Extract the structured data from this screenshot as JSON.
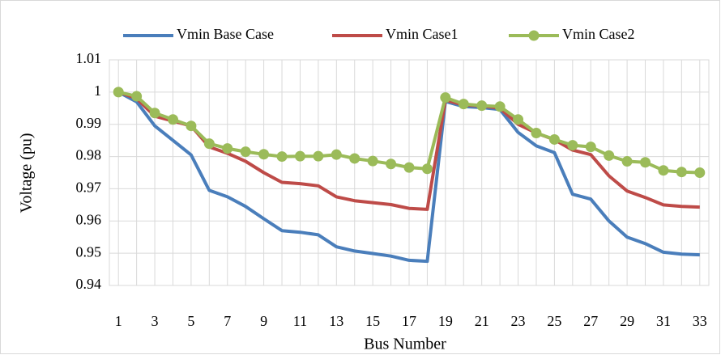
{
  "chart_data": {
    "type": "line",
    "x_label": "Bus Number",
    "y_label": "Voltage (pu)",
    "x": [
      1,
      2,
      3,
      4,
      5,
      6,
      7,
      8,
      9,
      10,
      11,
      12,
      13,
      14,
      15,
      16,
      17,
      18,
      19,
      20,
      21,
      22,
      23,
      24,
      25,
      26,
      27,
      28,
      29,
      30,
      31,
      32,
      33
    ],
    "xlim": [
      0.5,
      33.5
    ],
    "xticks": [
      1,
      3,
      5,
      7,
      9,
      11,
      13,
      15,
      17,
      19,
      21,
      23,
      25,
      27,
      29,
      31,
      33
    ],
    "ylim": [
      0.94,
      1.01
    ],
    "yticks": [
      0.94,
      0.95,
      0.96,
      0.97,
      0.98,
      0.99,
      1,
      1.01
    ],
    "grid": true,
    "legend": "top",
    "series": [
      {
        "name": "Vmin Base Case",
        "color": "#4a7ebb",
        "marker": false,
        "values": [
          1.0,
          0.997,
          0.9895,
          0.985,
          0.9805,
          0.9695,
          0.9675,
          0.9645,
          0.9607,
          0.957,
          0.9565,
          0.9557,
          0.952,
          0.9507,
          0.9499,
          0.9491,
          0.9478,
          0.9475,
          0.9971,
          0.9955,
          0.9952,
          0.9946,
          0.9875,
          0.9833,
          0.9812,
          0.9683,
          0.9668,
          0.96,
          0.955,
          0.953,
          0.9503,
          0.9497,
          0.9495
        ]
      },
      {
        "name": "Vmin Case1",
        "color": "#be4b48",
        "marker": false,
        "values": [
          1.0,
          0.998,
          0.9925,
          0.991,
          0.9895,
          0.983,
          0.981,
          0.9785,
          0.975,
          0.972,
          0.9716,
          0.9709,
          0.9675,
          0.9663,
          0.9657,
          0.9651,
          0.9639,
          0.9636,
          0.9975,
          0.996,
          0.9957,
          0.995,
          0.99,
          0.9873,
          0.9852,
          0.982,
          0.9806,
          0.974,
          0.9693,
          0.9673,
          0.965,
          0.9645,
          0.9643
        ]
      },
      {
        "name": "Vmin Case2",
        "color": "#9bbb59",
        "marker": true,
        "values": [
          1.0,
          0.9987,
          0.9935,
          0.9915,
          0.9895,
          0.984,
          0.9825,
          0.9815,
          0.9807,
          0.98,
          0.9801,
          0.9801,
          0.9806,
          0.9794,
          0.9786,
          0.9777,
          0.9766,
          0.9762,
          0.9983,
          0.9963,
          0.9958,
          0.9955,
          0.9915,
          0.9873,
          0.9853,
          0.9835,
          0.983,
          0.9803,
          0.9785,
          0.9782,
          0.9757,
          0.9752,
          0.975
        ]
      }
    ]
  }
}
